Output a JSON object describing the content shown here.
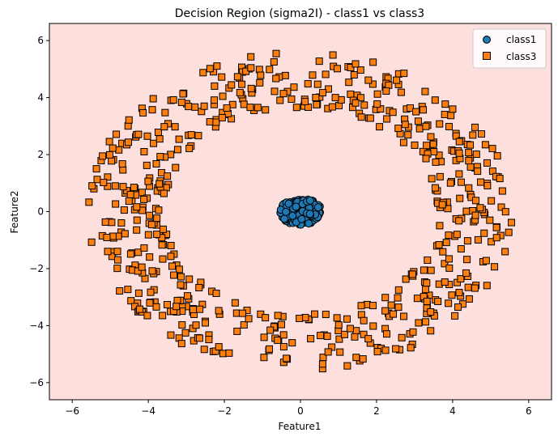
{
  "chart_data": {
    "type": "scatter",
    "title": "Decision Region (sigma2I) - class1 vs class3",
    "xlabel": "Feature1",
    "ylabel": "Feature2",
    "xlim": [
      -6.6,
      6.6
    ],
    "ylim": [
      -6.6,
      6.6
    ],
    "xticks": [
      -6,
      -4,
      -2,
      0,
      2,
      4,
      6
    ],
    "yticks": [
      -6,
      -4,
      -2,
      0,
      2,
      4,
      6
    ],
    "xtick_labels": [
      "−6",
      "−4",
      "−2",
      "0",
      "2",
      "4",
      "6"
    ],
    "ytick_labels": [
      "−6",
      "−4",
      "−2",
      "0",
      "2",
      "4",
      "6"
    ],
    "grid": false,
    "legend_position": "top-right",
    "region_color": "#fde0dd",
    "series": [
      {
        "name": "class1",
        "marker": "circle",
        "color": "#1f77b4",
        "edge": "#000000",
        "distribution": {
          "center": [
            0,
            0
          ],
          "radius_min": 0.0,
          "radius_max": 0.55,
          "count": 180
        }
      },
      {
        "name": "class3",
        "marker": "square",
        "color": "#ff7f0e",
        "edge": "#000000",
        "distribution": {
          "center": [
            0,
            0
          ],
          "radius_min": 3.6,
          "radius_max": 5.6,
          "count": 620
        }
      }
    ]
  }
}
